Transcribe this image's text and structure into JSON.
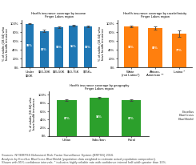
{
  "chart_data": [
    {
      "type": "bar",
      "title": "Health insurance coverage by income\nFinger Lakes region",
      "categories": [
        "Under\n$20K",
        "$20-39K",
        "$35-50K",
        "$50-75K",
        "$75K+"
      ],
      "values": [
        99,
        83,
        91,
        95,
        93
      ],
      "value_labels": [
        "99%",
        "83%",
        "91%",
        "95%",
        "93%"
      ],
      "errors": [
        1,
        3,
        2,
        2,
        1
      ],
      "y_label": "% of adults (18-64) who\nhave health insurance",
      "ylim": [
        0,
        108
      ],
      "yticks": [
        {
          "value": 0,
          "label": "0%"
        },
        {
          "value": 20,
          "label": "20%"
        },
        {
          "value": 40,
          "label": "40%"
        },
        {
          "value": 60,
          "label": "60%"
        },
        {
          "value": 80,
          "label": "80%"
        },
        {
          "value": 100,
          "label": "100%"
        }
      ],
      "data_labels": true,
      "grid": false
    },
    {
      "type": "bar",
      "title": "Health insurance coverage by race/ethnicity\nFinger Lakes region",
      "categories": [
        "White\n(not Latino*)",
        "African-\nAmerican **",
        "Latino *"
      ],
      "values": [
        93,
        89,
        77
      ],
      "value_labels": [
        "93%",
        "89%",
        "77%"
      ],
      "errors": [
        1,
        4,
        7
      ],
      "y_label": "% of adults (18-64) who\nhave health insurance",
      "ylim": [
        0,
        108
      ],
      "yticks": [
        {
          "value": 0,
          "label": "0%"
        },
        {
          "value": 20,
          "label": "20%"
        },
        {
          "value": 40,
          "label": "40%"
        },
        {
          "value": 60,
          "label": "60%"
        },
        {
          "value": 80,
          "label": "80%"
        },
        {
          "value": 100,
          "label": "100%"
        }
      ],
      "data_labels": true,
      "grid": false
    },
    {
      "type": "bar",
      "title": "Health insurance coverage by geography\nFinger Lakes region",
      "categories": [
        "Urban",
        "Suburban",
        "Rural"
      ],
      "values": [
        87,
        94,
        87
      ],
      "value_labels": [
        "87%",
        "94%",
        "87%"
      ],
      "errors": [
        2,
        2,
        2
      ],
      "y_label": "% of adults (18-64) who\nhave health insurance",
      "ylim": [
        0,
        108
      ],
      "yticks": [
        {
          "value": 0,
          "label": "0%"
        },
        {
          "value": 20,
          "label": "20%"
        },
        {
          "value": 40,
          "label": "40%"
        },
        {
          "value": 60,
          "label": "60%"
        },
        {
          "value": 80,
          "label": "80%"
        },
        {
          "value": 100,
          "label": "100%"
        }
      ],
      "data_labels": true,
      "grid": false
    }
  ],
  "annotations": [
    "Sources: NY/BRFSS Behavioral Risk Factor Surveillance System (BRFSS) 2016.\nAnalysis by Excellus BlueCross BlueShield (population data weighted to estimate actual population composition).\nShown with 95% confidence intervals. * indicates highly reliable rate with confidence interval half-width greater than 10%.",
    "Excellus\nBlueCross\nBlueShield"
  ]
}
